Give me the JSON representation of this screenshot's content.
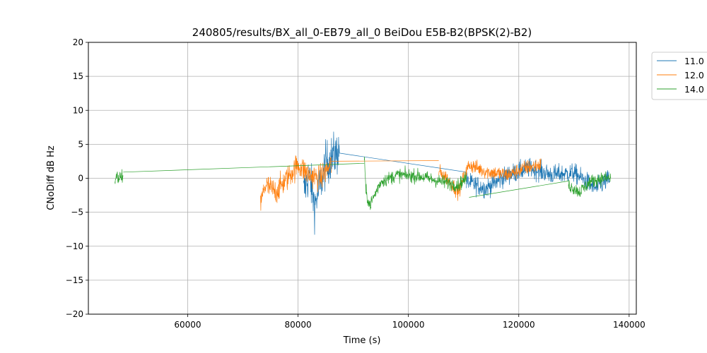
{
  "chart_data": {
    "type": "line",
    "title": "240805/results/BX_all_0-EB79_all_0 BeiDou E5B-B2(BPSK(2)-B2)",
    "xlabel": "Time (s)",
    "ylabel": "CNoDiff dB Hz",
    "xlim": [
      42000,
      141300
    ],
    "ylim": [
      -20,
      20
    ],
    "xticks": [
      60000,
      80000,
      100000,
      120000,
      140000
    ],
    "xtick_labels": [
      "60000",
      "80000",
      "100000",
      "120000",
      "140000"
    ],
    "yticks": [
      -20,
      -15,
      -10,
      -5,
      0,
      5,
      10,
      15,
      20
    ],
    "ytick_labels": [
      "−20",
      "−15",
      "−10",
      "−5",
      "0",
      "5",
      "10",
      "15",
      "20"
    ],
    "grid": true,
    "legend_position": "upper-right-outside",
    "series": [
      {
        "name": "11.0",
        "color": "#1f77b4",
        "segments": [
          {
            "x": [
              81000,
              82000,
              83000,
              84000,
              85000,
              86000,
              87500
            ],
            "y": [
              -2,
              0.5,
              -4,
              -1,
              2,
              3,
              4
            ]
          },
          {
            "x": [
              87500,
              110500
            ],
            "y": [
              3.7,
              0.9
            ]
          },
          {
            "x": [
              110500,
              114000,
              118000,
              122000,
              126000,
              130000,
              134000,
              136500
            ],
            "y": [
              -0.5,
              -1.5,
              0.5,
              1.5,
              0.5,
              0.8,
              -1.5,
              0
            ]
          }
        ],
        "noise": [
          3.0,
          1.3
        ]
      },
      {
        "name": "12.0",
        "color": "#ff7f0e",
        "segments": [
          {
            "x": [
              73200,
              74000,
              76000,
              78000,
              80000,
              82000,
              84000,
              86000
            ],
            "y": [
              -4,
              -1,
              -2,
              0,
              2,
              0.5,
              0,
              2
            ]
          },
          {
            "x": [
              86000,
              105500
            ],
            "y": [
              2.5,
              2.6
            ]
          },
          {
            "x": [
              105500,
              107000,
              109000,
              111000,
              114000,
              118000,
              121000,
              124000
            ],
            "y": [
              1,
              0,
              -2,
              2,
              1,
              0.5,
              1.5,
              2
            ]
          }
        ],
        "noise": [
          1.7,
          1.0
        ]
      },
      {
        "name": "14.0",
        "color": "#2ca02c",
        "segments": [
          {
            "x": [
              46800,
              48300
            ],
            "y": [
              0,
              0.2
            ]
          },
          {
            "x": [
              48300,
              92000
            ],
            "y": [
              0.9,
              2.2
            ]
          },
          {
            "x": [
              92000,
              92300,
              93000,
              95000,
              98000,
              102000,
              106000,
              109000,
              110500
            ],
            "y": [
              3,
              -2,
              -4,
              -0.5,
              0.5,
              0.3,
              -0.5,
              -1,
              0
            ]
          },
          {
            "x": [
              111000,
              129000
            ],
            "y": [
              -2.8,
              -0.4
            ]
          },
          {
            "x": [
              129000,
              131000,
              133000,
              135000,
              136700
            ],
            "y": [
              -1,
              -2,
              -0.5,
              0,
              0
            ]
          }
        ],
        "noise": [
          1.1,
          0.9
        ]
      }
    ]
  }
}
